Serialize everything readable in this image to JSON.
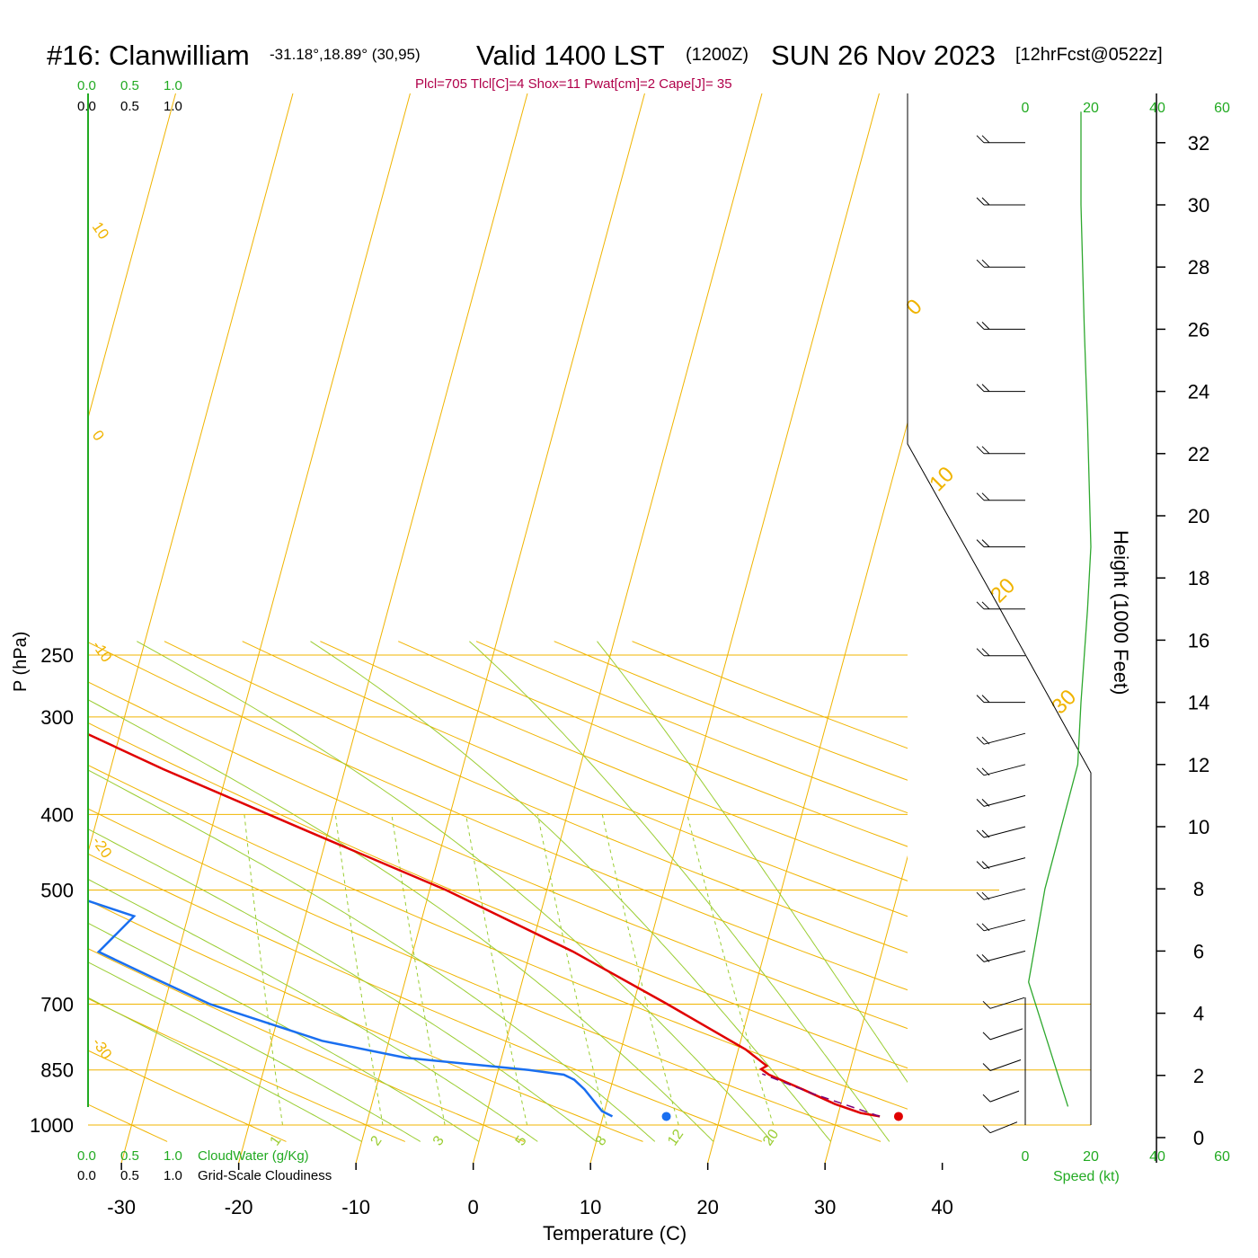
{
  "header": {
    "station": "#16: Clanwilliam",
    "coords": "-31.18°,18.89° (30,95)",
    "valid": "Valid 1400 LST",
    "utc": "(1200Z)",
    "date": "SUN 26 Nov 2023",
    "fcst": "[12hrFcst@0522z]",
    "indices": "Plcl=705 Tlcl[C]=4 Shox=11 Pwat[cm]=2 Cape[J]= 35"
  },
  "colors": {
    "temperature": "#e00000",
    "dewpoint": "#1a6ff0",
    "isotherm": "#f0b400",
    "dry_adiabat": "#f0b400",
    "moist_adiabat": "#9acd32",
    "mixing_ratio": "#9acd32",
    "windspeed": "#2ea82e",
    "indices": "#b0004a",
    "cloud_label": "#22aa22",
    "parcel": "#7a007a"
  },
  "chart_data": {
    "type": "line",
    "title": "#16: Clanwilliam",
    "xlabel": "Temperature (C)",
    "ylabel": "P (hPa)",
    "y2label": "Height (1000 Feet)",
    "xlim": [
      -30,
      40
    ],
    "ylim": [
      1000,
      250
    ],
    "x_ticks": [
      -30,
      -20,
      -10,
      0,
      10,
      20,
      30,
      40
    ],
    "p_ticks": [
      250,
      300,
      400,
      500,
      700,
      850,
      1000
    ],
    "height_ticks": [
      0,
      2,
      4,
      6,
      8,
      10,
      12,
      14,
      16,
      18,
      20,
      22,
      24,
      26,
      28,
      30,
      32
    ],
    "dry_adiabat_labels": [
      "10",
      "0",
      "-10",
      "-20",
      "-30"
    ],
    "isotherm_labels_right": [
      "0",
      "10",
      "20",
      "30"
    ],
    "mixing_ratio_labels": [
      "1",
      "2",
      "3",
      "5",
      "8",
      "12",
      "20"
    ],
    "top_scale_green": [
      "0.0",
      "0.5",
      "1.0"
    ],
    "top_scale_black": [
      "0.0",
      "0.5",
      "1.0"
    ],
    "bottom_scale_green": [
      "0.0",
      "0.5",
      "1.0"
    ],
    "bottom_scale_black": [
      "0.0",
      "0.5",
      "1.0"
    ],
    "cloudwater_label": "CloudWater (g/Kg)",
    "cloudiness_label": "Grid-Scale Cloudiness",
    "speed_label": "Speed (kt)",
    "speed_ticks": [
      "0",
      "20",
      "40",
      "60"
    ],
    "series": [
      {
        "name": "Temperature",
        "p": [
          975,
          965,
          940,
          900,
          875,
          862,
          848,
          840,
          800,
          700,
          600,
          500,
          420,
          350,
          300,
          262
        ],
        "t": [
          33.6,
          31.9,
          29.5,
          26.4,
          24.3,
          23.2,
          22.4,
          22.8,
          20.6,
          12.9,
          3.7,
          -8.6,
          -21.8,
          -35.5,
          -46.3,
          -54.6
        ]
      },
      {
        "name": "Dewpoint",
        "p": [
          975,
          960,
          900,
          875,
          862,
          850,
          820,
          780,
          700,
          650,
          600,
          540,
          500,
          470,
          420,
          390,
          340,
          310,
          285,
          262
        ],
        "t": [
          10.8,
          9.8,
          7.8,
          6.7,
          5.7,
          2.6,
          -8.2,
          -15.7,
          -26.1,
          -31.3,
          -36.8,
          -34.6,
          -41.9,
          -69.2,
          -67.6,
          -62.0,
          -53.3,
          -59.4,
          -64.7,
          -67.6
        ]
      },
      {
        "name": "Parcel",
        "p": [
          975,
          910,
          860
        ],
        "t": [
          33.6,
          27.2,
          22.6
        ]
      }
    ],
    "surface_points": [
      {
        "name": "Surface temperature",
        "t": 35.2,
        "p": 975
      },
      {
        "name": "Surface dewpoint",
        "t": 15.4,
        "p": 975
      }
    ],
    "windspeed_profile": {
      "height_kft": [
        1,
        5,
        8,
        12,
        14,
        17,
        19,
        23,
        26,
        30,
        33
      ],
      "speed_kt": [
        13,
        1,
        6,
        16,
        17,
        19,
        20,
        19,
        18,
        17,
        17
      ]
    },
    "wind_barbs_height_kft": [
      0.5,
      1.5,
      2.5,
      3.5,
      4.5,
      6,
      7,
      8,
      9,
      10,
      11,
      12,
      13,
      14,
      15.5,
      17,
      19,
      20.5,
      22,
      24,
      26,
      28,
      30,
      32
    ],
    "grid": true
  }
}
